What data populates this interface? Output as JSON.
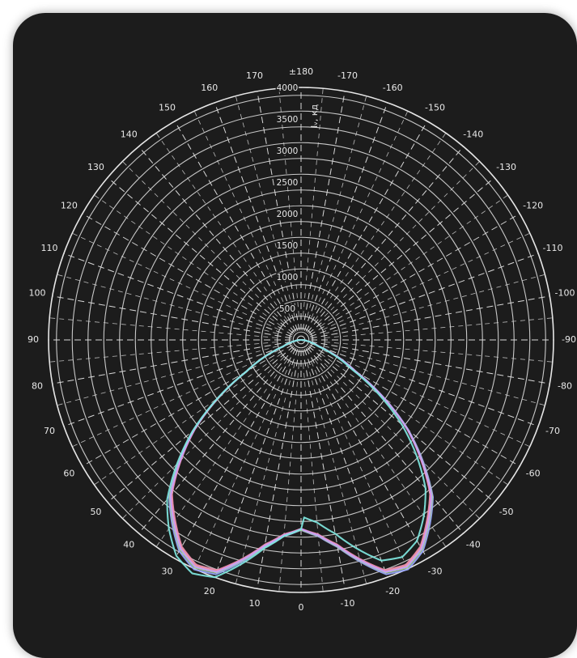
{
  "chart_data": {
    "type": "polar",
    "radial_unit": "Iᵥ, кд",
    "radial_ticks": [
      500,
      1000,
      1500,
      2000,
      2500,
      3000,
      3500,
      4000
    ],
    "rlim": [
      0,
      4000
    ],
    "angle_labels": [
      "±180",
      "170",
      "160",
      "150",
      "140",
      "130",
      "120",
      "110",
      "100",
      "90",
      "80",
      "70",
      "60",
      "50",
      "40",
      "30",
      "20",
      "10",
      "0",
      "-10",
      "-20",
      "-30",
      "-40",
      "-50",
      "-60",
      "-70",
      "-80",
      "-90",
      "-100",
      "-110",
      "-120",
      "-130",
      "-140",
      "-150",
      "-160",
      "-170"
    ],
    "zero_direction": "down",
    "angle_direction": "positive angles on the left side",
    "grid": true,
    "background_color": "#1c1c1c",
    "grid_color": "#d8d8d8",
    "series": [
      {
        "color": "#ffb38a",
        "angles": [
          0,
          5,
          10,
          15,
          20,
          25,
          30,
          35,
          40,
          45,
          50,
          55,
          60,
          70,
          80,
          90
        ],
        "values": [
          3000,
          3100,
          3300,
          3600,
          3900,
          3950,
          3800,
          3500,
          3200,
          2700,
          2200,
          1600,
          1000,
          300,
          100,
          0
        ],
        "mirror": true
      },
      {
        "color": "#9aa7ff",
        "angles": [
          0,
          5,
          10,
          15,
          20,
          25,
          30,
          35,
          40,
          45,
          50,
          55,
          60,
          70,
          80,
          90
        ],
        "values": [
          3010,
          3120,
          3330,
          3640,
          3950,
          4010,
          3860,
          3560,
          3250,
          2740,
          2220,
          1610,
          1000,
          300,
          100,
          0
        ],
        "mirror": true
      },
      {
        "color": "#f08fb0",
        "angles": [
          0,
          5,
          10,
          15,
          20,
          25,
          30,
          35,
          40,
          45,
          50,
          55,
          60,
          70,
          80,
          90
        ],
        "values": [
          2990,
          3090,
          3290,
          3590,
          3880,
          3930,
          3780,
          3480,
          3180,
          2690,
          2190,
          1590,
          1000,
          300,
          100,
          0
        ],
        "mirror": true
      },
      {
        "color": "#a8e08a",
        "angles": [
          0,
          5,
          10,
          15,
          20,
          25,
          30,
          35,
          40,
          45,
          50,
          55,
          60,
          70,
          80,
          90
        ],
        "values": [
          3005,
          3110,
          3320,
          3620,
          3920,
          3980,
          3830,
          3530,
          3230,
          2720,
          2210,
          1600,
          1000,
          300,
          100,
          0
        ],
        "mirror": true
      },
      {
        "color": "#c79cff",
        "angles": [
          0,
          5,
          10,
          15,
          20,
          25,
          30,
          35,
          40,
          45,
          50,
          55,
          60,
          70,
          80,
          90
        ],
        "values": [
          2995,
          3105,
          3310,
          3610,
          3910,
          3965,
          3815,
          3515,
          3215,
          2710,
          2205,
          1605,
          1000,
          300,
          100,
          0
        ],
        "mirror": true
      },
      {
        "color": "#7fe7e0",
        "angles": [
          0,
          5,
          10,
          15,
          20,
          25,
          30,
          35,
          40,
          45,
          50,
          55,
          60,
          70,
          80,
          90
        ],
        "values": [
          3000,
          3120,
          3350,
          3680,
          4000,
          4080,
          3950,
          3650,
          3300,
          2780,
          2240,
          1620,
          1000,
          300,
          100,
          0
        ],
        "mirror": false
      }
    ]
  }
}
